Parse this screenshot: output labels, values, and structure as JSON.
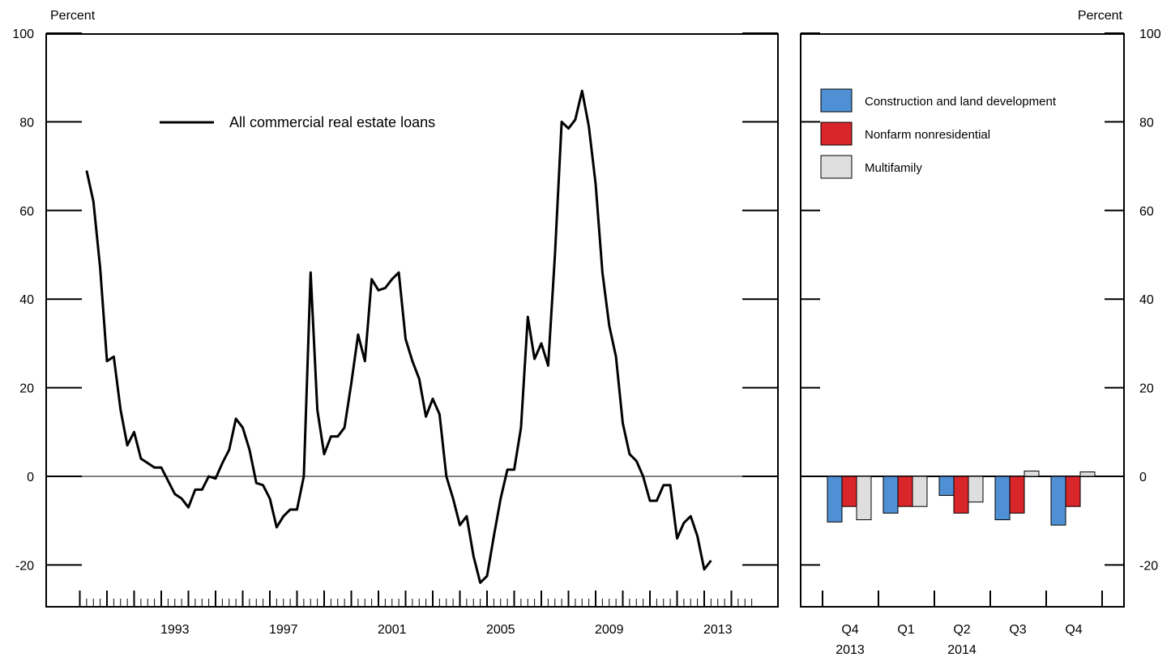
{
  "chart_data": [
    {
      "type": "line",
      "title": "",
      "unit_label": "Percent",
      "ylim": [
        -30,
        100
      ],
      "yticks": [
        -20,
        0,
        20,
        40,
        60,
        80,
        100
      ],
      "xlim": [
        1989.0,
        2015.0
      ],
      "x_tick_labels": [
        "1993",
        "1997",
        "2001",
        "2005",
        "2009",
        "2013"
      ],
      "x_label_years": [
        1993,
        1997,
        2001,
        2005,
        2009,
        2013
      ],
      "series": [
        {
          "name": "All commercial real estate loans",
          "color": "#000000",
          "x": [
            1990.25,
            1990.5,
            1990.75,
            1991.0,
            1991.25,
            1991.5,
            1991.75,
            1992.0,
            1992.25,
            1992.5,
            1992.75,
            1993.0,
            1993.25,
            1993.5,
            1993.75,
            1994.0,
            1994.25,
            1994.5,
            1994.75,
            1995.0,
            1995.25,
            1995.5,
            1995.75,
            1996.0,
            1996.25,
            1996.5,
            1996.75,
            1997.0,
            1997.25,
            1997.5,
            1997.75,
            1998.0,
            1998.25,
            1998.5,
            1998.75,
            1999.0,
            1999.25,
            1999.5,
            1999.75,
            2000.0,
            2000.25,
            2000.5,
            2000.75,
            2001.0,
            2001.25,
            2001.5,
            2001.75,
            2002.0,
            2002.25,
            2002.5,
            2002.75,
            2003.0,
            2003.25,
            2003.5,
            2003.75,
            2004.0,
            2004.25,
            2004.5,
            2004.75,
            2005.0,
            2005.25,
            2005.5,
            2005.75,
            2006.0,
            2006.25,
            2006.5,
            2006.75,
            2007.0,
            2007.25,
            2007.5,
            2007.75,
            2008.0,
            2008.25,
            2008.5,
            2008.75,
            2009.0,
            2009.25,
            2009.5,
            2009.75,
            2010.0,
            2010.25,
            2010.5,
            2010.75,
            2011.0,
            2011.25,
            2011.5,
            2011.75,
            2012.0,
            2012.25,
            2012.5,
            2012.75,
            2013.0,
            2013.25
          ],
          "y": [
            69,
            62,
            47,
            26,
            27,
            15,
            7,
            10,
            4,
            3,
            2,
            2,
            -1,
            -4,
            -5,
            -7,
            -3,
            -3,
            0,
            -0.5,
            3,
            6,
            13,
            11,
            6,
            -1.5,
            -2,
            -5,
            -11.5,
            -9,
            -7.5,
            -7.5,
            0,
            46,
            15,
            5,
            9,
            9,
            11,
            21,
            32,
            26,
            44.5,
            42,
            42.5,
            44.5,
            46,
            31,
            26,
            22,
            13.5,
            17.5,
            14,
            0,
            -5,
            -11,
            -9,
            -18,
            -24,
            -22.5,
            -13.5,
            -5,
            1.5,
            1.5,
            11,
            36,
            26.5,
            30,
            25,
            50,
            80,
            78.5,
            80.5,
            87,
            79,
            66,
            46,
            34,
            27,
            12,
            5,
            3.5,
            0,
            -5.5,
            -5.5,
            -2,
            -2,
            -14,
            -10.5,
            -9,
            -13.5,
            -21,
            -19
          ]
        }
      ]
    },
    {
      "type": "bar",
      "title": "",
      "unit_label": "Percent",
      "ylim": [
        -30,
        100
      ],
      "yticks": [
        -20,
        0,
        20,
        40,
        60,
        80,
        100
      ],
      "categories": [
        "Q4",
        "Q1",
        "Q2",
        "Q3",
        "Q4"
      ],
      "year_labels": [
        {
          "text": "2013",
          "under": 0
        },
        {
          "text": "2014",
          "under": 2
        }
      ],
      "series": [
        {
          "name": "Construction and land development",
          "color": "#4f8fd4",
          "values": [
            -10.3,
            -8.3,
            -4.3,
            -9.8,
            -11.0
          ]
        },
        {
          "name": "Nonfarm nonresidential",
          "color": "#d9262a",
          "values": [
            -6.8,
            -6.8,
            -8.3,
            -8.3,
            -6.8
          ]
        },
        {
          "name": "Multifamily",
          "color": "#dedede",
          "values": [
            -9.8,
            -6.8,
            -5.8,
            1.2,
            1.0
          ]
        }
      ]
    }
  ]
}
